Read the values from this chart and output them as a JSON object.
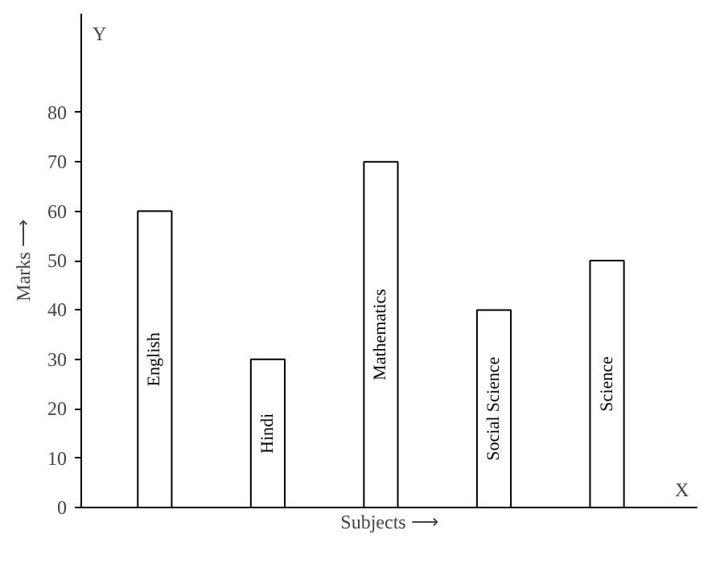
{
  "chart_data": {
    "type": "bar",
    "categories": [
      "English",
      "Hindi",
      "Mathematics",
      "Social Science",
      "Science"
    ],
    "values": [
      60,
      30,
      70,
      40,
      50
    ],
    "color": "#ffffff",
    "ylim": [
      0,
      100
    ],
    "yticks": [
      0,
      10,
      20,
      30,
      40,
      50,
      60,
      70,
      80
    ],
    "xlabel": "Subjects ⟶",
    "ylabel": "Marks ⟶",
    "annotations": [
      "Y",
      "X"
    ],
    "tick_labels": "y",
    "grid": false
  }
}
